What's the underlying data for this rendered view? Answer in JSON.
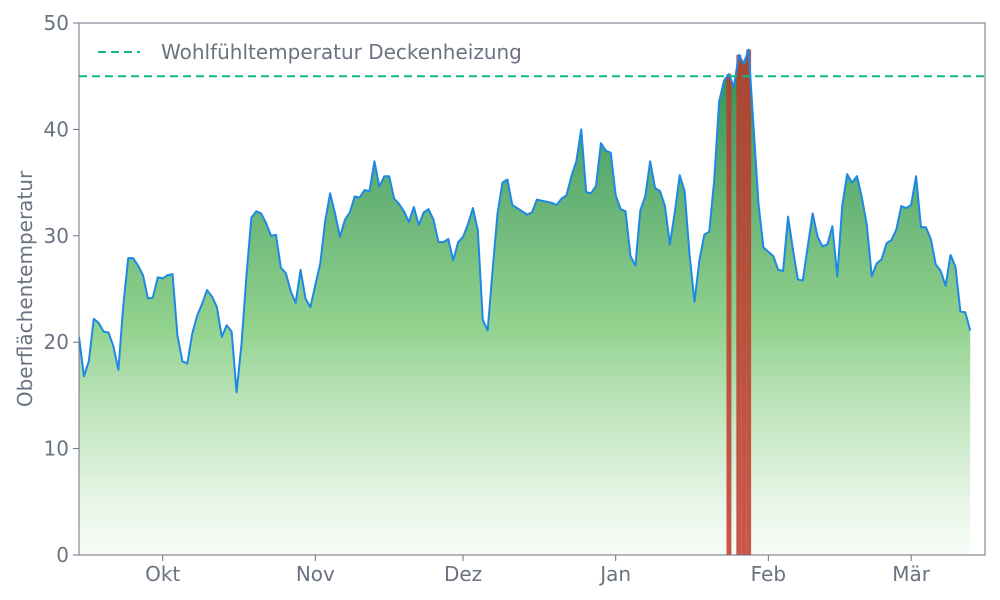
{
  "chart_data": {
    "type": "area",
    "ylabel": "Oberflächentemperatur",
    "xlabel": "",
    "ylim": [
      0,
      50
    ],
    "yticks": [
      0,
      10,
      20,
      30,
      40,
      50
    ],
    "xlim": [
      "2023-09-14",
      "2024-03-16"
    ],
    "xticks": [
      {
        "date": "2023-10-01",
        "label": "Okt"
      },
      {
        "date": "2023-11-01",
        "label": "Nov"
      },
      {
        "date": "2023-12-01",
        "label": "Dez"
      },
      {
        "date": "2024-01-01",
        "label": "Jan"
      },
      {
        "date": "2024-02-01",
        "label": "Feb"
      },
      {
        "date": "2024-03-01",
        "label": "Mär"
      }
    ],
    "threshold": {
      "value": 45,
      "label": "Wohlfühltemperatur Deckenheizung",
      "color": "#10b981",
      "style": "dashed"
    },
    "legend_position": "top-left",
    "grid": false,
    "colors": {
      "line": "#1e88e5",
      "area_top": "#2e8b57",
      "area_bottom": "#f4fbf3",
      "over_threshold": "#c0392b"
    },
    "series": [
      {
        "x_start": "2023-09-14",
        "x_step_days": 1,
        "values": [
          20.5,
          16.8,
          18.2,
          22.2,
          21.8,
          21.0,
          20.9,
          19.6,
          17.4,
          23.5,
          27.9,
          27.9,
          27.2,
          26.3,
          24.1,
          24.2,
          26.1,
          26.0,
          26.3,
          26.4,
          20.6,
          18.2,
          18.0,
          20.8,
          22.5,
          23.6,
          24.9,
          24.3,
          23.3,
          20.5,
          21.6,
          21.0,
          15.3,
          19.8,
          26.2,
          31.7,
          32.3,
          32.1,
          31.2,
          30.0,
          30.1,
          27.0,
          26.5,
          24.8,
          23.7,
          26.8,
          24.1,
          23.3,
          25.4,
          27.4,
          31.4,
          34.0,
          32.1,
          29.9,
          31.5,
          32.2,
          33.7,
          33.6,
          34.3,
          34.2,
          37.0,
          34.6,
          35.6,
          35.6,
          33.5,
          33.0,
          32.3,
          31.3,
          32.7,
          31.0,
          32.2,
          32.5,
          31.5,
          29.4,
          29.4,
          29.7,
          27.7,
          29.4,
          29.9,
          31.1,
          32.6,
          30.5,
          22.1,
          21.1,
          26.8,
          32.1,
          35.0,
          35.3,
          32.9,
          32.6,
          32.3,
          32.0,
          32.2,
          33.4,
          33.3,
          33.2,
          33.1,
          32.9,
          33.5,
          33.8,
          35.6,
          37.0,
          40.0,
          34.1,
          34.0,
          34.7,
          38.7,
          38.0,
          37.8,
          33.8,
          32.5,
          32.3,
          28.1,
          27.2,
          32.4,
          33.7,
          37.0,
          34.5,
          34.2,
          32.8,
          29.2,
          32.2,
          35.7,
          34.2,
          28.2,
          23.8,
          27.7,
          30.1,
          30.4,
          35.2,
          42.6,
          44.6,
          45.2,
          44.0,
          47.0,
          46.2,
          47.5,
          40.2,
          33.0,
          28.9,
          28.5,
          28.1,
          26.8,
          26.7,
          31.8,
          28.7,
          25.9,
          25.8,
          29.0,
          32.1,
          29.9,
          29.0,
          29.2,
          30.9,
          26.2,
          32.8,
          35.8,
          35.0,
          35.6,
          33.6,
          31.0,
          26.2,
          27.4,
          27.8,
          29.3,
          29.6,
          30.6,
          32.8,
          32.6,
          32.9,
          35.6,
          30.8,
          30.8,
          29.7,
          27.3,
          26.7,
          25.3,
          28.2,
          27.1,
          22.9,
          22.8,
          21.1
        ]
      }
    ]
  }
}
